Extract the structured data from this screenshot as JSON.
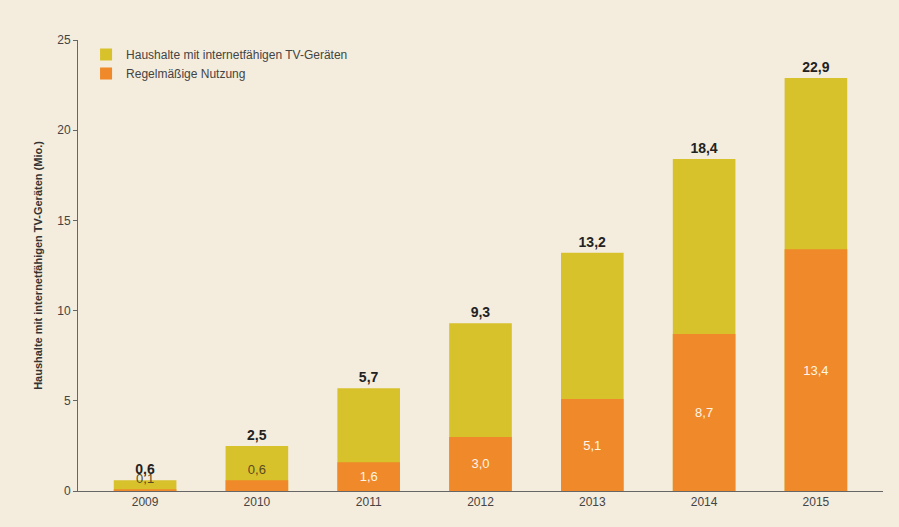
{
  "chart_data": {
    "type": "bar",
    "ylabel": "Haushalte mit internetfähigen TV-Geräten (Mio.)",
    "categories": [
      "2009",
      "2010",
      "2011",
      "2012",
      "2013",
      "2014",
      "2015"
    ],
    "series": [
      {
        "name": "Haushalte mit internetfähigen TV-Geräten",
        "color": "#d8c22c",
        "values": [
          0.6,
          2.5,
          5.7,
          9.3,
          13.2,
          18.4,
          22.9
        ],
        "value_labels": [
          "0,6",
          "2,5",
          "5,7",
          "9,3",
          "13,2",
          "18,4",
          "22,9"
        ]
      },
      {
        "name": "Regelmäßige Nutzung",
        "color": "#f0892a",
        "values": [
          0.1,
          0.6,
          1.6,
          3.0,
          5.1,
          8.7,
          13.4
        ],
        "value_labels": [
          "0,1",
          "0,6",
          "1,6",
          "3,0",
          "5,1",
          "8,7",
          "13,4"
        ]
      }
    ],
    "ylim": [
      0,
      25
    ],
    "yticks": [
      0,
      5,
      10,
      15,
      20,
      25
    ],
    "grid": false,
    "legend": "top-left",
    "stacked": false,
    "data_labels": true
  }
}
